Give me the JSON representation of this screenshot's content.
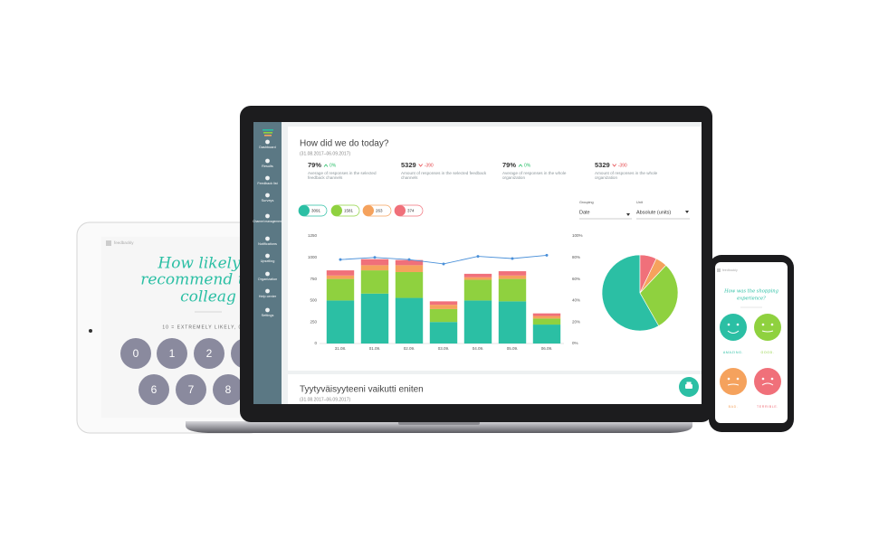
{
  "tablet": {
    "brand": "feedbackly",
    "question_lines": [
      "How likely w",
      "recommend us to",
      "colleag"
    ],
    "scale": "10 = EXTREMELY LIKELY, 0 = N",
    "buttons": [
      "0",
      "1",
      "2",
      "6",
      "7",
      "8"
    ]
  },
  "phone": {
    "brand": "feedbackly",
    "question_lines": [
      "How was the shopping",
      "experience?"
    ],
    "answers": [
      "AMAZING.",
      "GOOD.",
      "BAD.",
      "TERRIBLE."
    ]
  },
  "sidebar": [
    "Dashboard",
    "Results",
    "Feedback list",
    "Surveys",
    "Channel management",
    "Notifications",
    "Upselling",
    "Organization",
    "Help center",
    "Settings"
  ],
  "dashboard": {
    "title": "How did we do today?",
    "period": "(31.08.2017–06.09.2017)",
    "kpis": [
      {
        "value": "79%",
        "change": "0%",
        "label": "Average of responses in the selected feedback channels"
      },
      {
        "value": "5329",
        "change": "-390",
        "label": "Amount of responses in the selected feedback channels"
      },
      {
        "value": "79%",
        "change": "0%",
        "label": "Average of responses in the whole organization"
      },
      {
        "value": "5329",
        "change": "-390",
        "label": "Amount of responses in the whole organization"
      }
    ],
    "grouping_label": "Grouping",
    "grouping": "Date",
    "unit_label": "Unit",
    "unit": "Absolute (units)",
    "section2_title": "Tyytyväisyyteeni vaikutti eniten",
    "section2_period": "(31.08.2017–06.09.2017)"
  },
  "chart_data": [
    {
      "type": "bar",
      "stacked": true,
      "categories": [
        "31.08.",
        "01.09.",
        "02.09.",
        "03.09.",
        "04.09.",
        "05.09.",
        "06.09."
      ],
      "series": [
        {
          "color": "#2bbfa4",
          "values": [
            500,
            580,
            530,
            250,
            500,
            490,
            220
          ]
        },
        {
          "color": "#8fd13f",
          "values": [
            250,
            270,
            300,
            150,
            240,
            260,
            70
          ]
        },
        {
          "color": "#f5a25d",
          "values": [
            40,
            60,
            80,
            50,
            30,
            40,
            30
          ]
        },
        {
          "color": "#f0707a",
          "values": [
            60,
            70,
            60,
            40,
            40,
            50,
            30
          ]
        },
        {
          "type": "line",
          "axis": "y2",
          "color": "#4a90d9",
          "values": [
            78,
            80,
            78,
            74,
            81,
            79,
            82
          ]
        }
      ],
      "ylim": [
        0,
        1250
      ],
      "yticks": [
        0,
        250,
        500,
        750,
        1000,
        1250
      ],
      "y2lim": [
        0,
        100
      ],
      "y2ticks": [
        {
          "value": 0,
          "label": "0%"
        },
        {
          "value": 20,
          "label": "20%"
        },
        {
          "value": 40,
          "label": "40%"
        },
        {
          "value": 60,
          "label": "60%"
        },
        {
          "value": 80,
          "label": "80%"
        },
        {
          "value": 100,
          "label": "100%"
        }
      ],
      "grid": false
    },
    {
      "type": "pie",
      "values": [
        3091,
        1581,
        263,
        374
      ],
      "colors": [
        "#2bbfa4",
        "#8fd13f",
        "#f5a25d",
        "#f0707a"
      ]
    }
  ]
}
